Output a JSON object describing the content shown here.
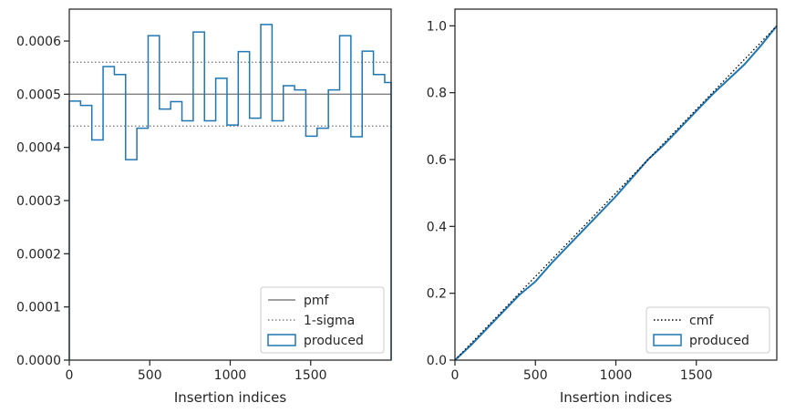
{
  "chart_data": [
    {
      "type": "histogram-step",
      "xlabel": "Insertion indices",
      "ylabel": "",
      "xlim": [
        0,
        2000
      ],
      "ylim": [
        0,
        0.00066
      ],
      "xticks": [
        0,
        500,
        1000,
        1500
      ],
      "xtick_labels": [
        "0",
        "500",
        "1000",
        "1500"
      ],
      "yticks": [
        0,
        0.0001,
        0.0002,
        0.0003,
        0.0004,
        0.0005,
        0.0006
      ],
      "ytick_labels": [
        "0.0000",
        "0.0001",
        "0.0002",
        "0.0003",
        "0.0004",
        "0.0005",
        "0.0006"
      ],
      "bin_edges": [
        0,
        70,
        140,
        210,
        280,
        350,
        420,
        490,
        560,
        630,
        700,
        770,
        840,
        910,
        980,
        1050,
        1120,
        1190,
        1260,
        1330,
        1400,
        1470,
        1540,
        1610,
        1680,
        1750,
        1820,
        1890,
        1960,
        2000
      ],
      "series": [
        {
          "name": "pmf",
          "style": "solid",
          "color": "#808080",
          "value": 0.0005
        },
        {
          "name": "1-sigma",
          "style": "dotted",
          "color": "#808080",
          "values": [
            0.00044,
            0.00056
          ]
        },
        {
          "name": "produced",
          "style": "step",
          "color": "#1f77b4",
          "values": [
            0.000487,
            0.000479,
            0.000414,
            0.000552,
            0.000537,
            0.000377,
            0.000436,
            0.00061,
            0.000472,
            0.000486,
            0.00045,
            0.000617,
            0.00045,
            0.00053,
            0.000442,
            0.00058,
            0.000455,
            0.000631,
            0.00045,
            0.000516,
            0.000508,
            0.000421,
            0.000436,
            0.000508,
            0.00061,
            0.00042,
            0.000581,
            0.000537,
            0.000522
          ]
        }
      ],
      "legend": {
        "location": "lower right",
        "entries": [
          "pmf",
          "1-sigma",
          "produced"
        ]
      }
    },
    {
      "type": "line",
      "xlabel": "Insertion indices",
      "ylabel": "",
      "xlim": [
        0,
        2000
      ],
      "ylim": [
        0,
        1.05
      ],
      "xticks": [
        0,
        500,
        1000,
        1500
      ],
      "xtick_labels": [
        "0",
        "500",
        "1000",
        "1500"
      ],
      "yticks": [
        0,
        0.2,
        0.4,
        0.6,
        0.8,
        1.0
      ],
      "ytick_labels": [
        "0.0",
        "0.2",
        "0.4",
        "0.6",
        "0.8",
        "1.0"
      ],
      "series": [
        {
          "name": "cmf",
          "style": "dotted",
          "color": "#000000",
          "x": [
            0,
            2000
          ],
          "y": [
            0,
            1.0
          ]
        },
        {
          "name": "produced",
          "style": "step",
          "color": "#1f77b4",
          "x": [
            0,
            100,
            200,
            300,
            400,
            500,
            600,
            700,
            800,
            900,
            1000,
            1100,
            1200,
            1300,
            1400,
            1500,
            1600,
            1700,
            1800,
            1900,
            2000
          ],
          "y": [
            0,
            0.045,
            0.095,
            0.145,
            0.195,
            0.235,
            0.29,
            0.34,
            0.39,
            0.44,
            0.49,
            0.545,
            0.6,
            0.645,
            0.695,
            0.745,
            0.795,
            0.84,
            0.885,
            0.94,
            1.0
          ]
        }
      ],
      "legend": {
        "location": "lower right",
        "entries": [
          "cmf",
          "produced"
        ]
      }
    }
  ]
}
